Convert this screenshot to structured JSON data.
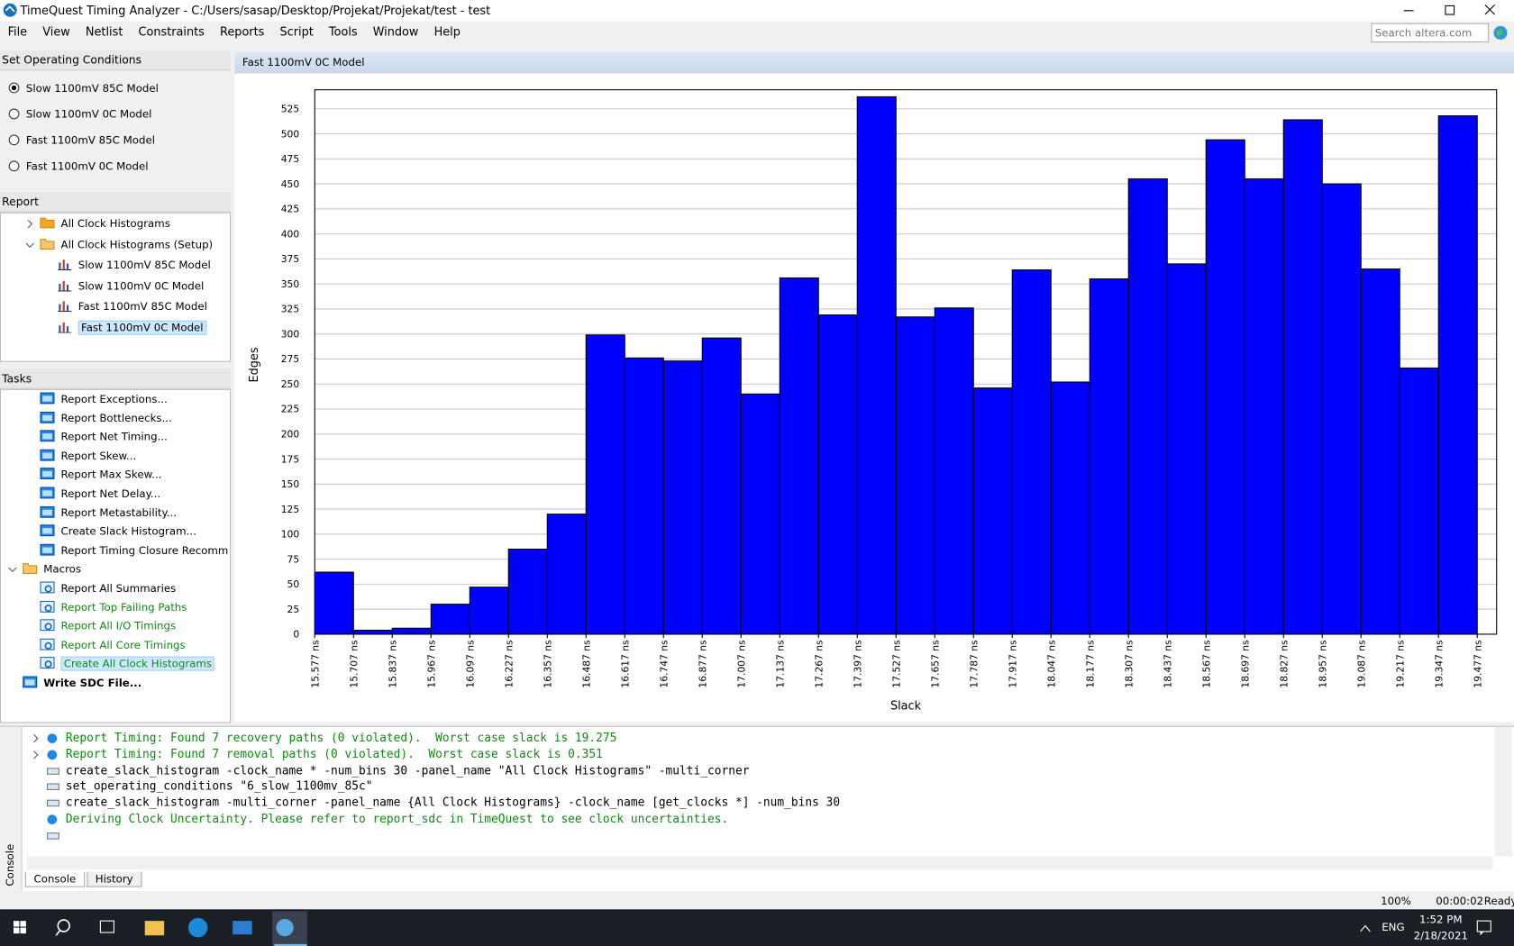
{
  "window": {
    "title": "TimeQuest Timing Analyzer - C:/Users/sasap/Desktop/Projekat/Projekat/test - test"
  },
  "menu": [
    "File",
    "View",
    "Netlist",
    "Constraints",
    "Reports",
    "Script",
    "Tools",
    "Window",
    "Help"
  ],
  "search": {
    "placeholder": "Search altera.com"
  },
  "operating_conditions": {
    "title": "Set Operating Conditions",
    "options": [
      "Slow 1100mV 85C Model",
      "Slow 1100mV 0C Model",
      "Fast 1100mV 85C Model",
      "Fast 1100mV 0C Model"
    ],
    "selected": 0
  },
  "report": {
    "title": "Report",
    "items": [
      {
        "label": "All Clock Histograms",
        "icon": "folder",
        "level": 1,
        "toggle": "collapsed"
      },
      {
        "label": "All Clock Histograms (Setup)",
        "icon": "folder-open",
        "level": 1,
        "toggle": "expanded"
      },
      {
        "label": "Slow 1100mV 85C Model",
        "icon": "chart",
        "level": 2
      },
      {
        "label": "Slow 1100mV 0C Model",
        "icon": "chart",
        "level": 2
      },
      {
        "label": "Fast 1100mV 85C Model",
        "icon": "chart",
        "level": 2
      },
      {
        "label": "Fast 1100mV 0C Model",
        "icon": "chart",
        "level": 2,
        "selected": true
      }
    ]
  },
  "tasks": {
    "title": "Tasks",
    "items": [
      {
        "label": "Report Exceptions...",
        "icon": "task",
        "level": 1
      },
      {
        "label": "Report Bottlenecks...",
        "icon": "task",
        "level": 1
      },
      {
        "label": "Report Net Timing...",
        "icon": "task",
        "level": 1
      },
      {
        "label": "Report Skew...",
        "icon": "task",
        "level": 1
      },
      {
        "label": "Report Max Skew...",
        "icon": "task",
        "level": 1
      },
      {
        "label": "Report Net Delay...",
        "icon": "task",
        "level": 1
      },
      {
        "label": "Report Metastability...",
        "icon": "task",
        "level": 1
      },
      {
        "label": "Create Slack Histogram...",
        "icon": "task",
        "level": 1
      },
      {
        "label": "Report Timing Closure Recomm",
        "icon": "task",
        "level": 1
      },
      {
        "label": "Macros",
        "icon": "folder-open",
        "level": 0,
        "toggle": "expanded"
      },
      {
        "label": "Report All Summaries",
        "icon": "tcl",
        "level": 1
      },
      {
        "label": "Report Top Failing Paths",
        "icon": "tcl",
        "level": 1,
        "green": true
      },
      {
        "label": "Report All I/O Timings",
        "icon": "tcl",
        "level": 1,
        "green": true
      },
      {
        "label": "Report All Core Timings",
        "icon": "tcl",
        "level": 1,
        "green": true
      },
      {
        "label": "Create All Clock Histograms",
        "icon": "tcl",
        "level": 1,
        "green": true,
        "selected": true
      },
      {
        "label": "Write SDC File...",
        "icon": "task",
        "level": 0,
        "bold": true
      }
    ]
  },
  "chart_panel": {
    "title": "Fast 1100mV 0C Model"
  },
  "chart_data": {
    "type": "histogram",
    "xlabel": "Slack",
    "ylabel": "Edges",
    "color": "#0000ff",
    "grid": true,
    "bins": [
      15.577,
      15.707,
      15.837,
      15.967,
      16.097,
      16.227,
      16.357,
      16.487,
      16.617,
      16.747,
      16.877,
      17.007,
      17.137,
      17.267,
      17.397,
      17.527,
      17.657,
      17.787,
      17.917,
      18.047,
      18.177,
      18.307,
      18.437,
      18.567,
      18.697,
      18.827,
      18.957,
      19.087,
      19.217,
      19.347,
      19.477
    ],
    "values": [
      62,
      4,
      6,
      30,
      47,
      85,
      120,
      299,
      276,
      273,
      296,
      240,
      356,
      319,
      537,
      317,
      326,
      246,
      364,
      252,
      355,
      455,
      370,
      494,
      455,
      514,
      450,
      365,
      266,
      518
    ],
    "xlim": [
      15.577,
      19.542
    ],
    "ylim": [
      0,
      544
    ],
    "yticks": [
      0,
      25,
      50,
      75,
      100,
      125,
      150,
      175,
      200,
      225,
      250,
      275,
      300,
      325,
      350,
      375,
      400,
      425,
      450,
      475,
      500,
      525
    ],
    "xticks": [
      {
        "value": 15.577,
        "label": "15.577 ns"
      },
      {
        "value": 15.707,
        "label": "15.707 ns"
      },
      {
        "value": 15.837,
        "label": "15.837 ns"
      },
      {
        "value": 15.967,
        "label": "15.967 ns"
      },
      {
        "value": 16.097,
        "label": "16.097 ns"
      },
      {
        "value": 16.227,
        "label": "16.227 ns"
      },
      {
        "value": 16.357,
        "label": "16.357 ns"
      },
      {
        "value": 16.487,
        "label": "16.487 ns"
      },
      {
        "value": 16.617,
        "label": "16.617 ns"
      },
      {
        "value": 16.747,
        "label": "16.747 ns"
      },
      {
        "value": 16.877,
        "label": "16.877 ns"
      },
      {
        "value": 17.007,
        "label": "17.007 ns"
      },
      {
        "value": 17.137,
        "label": "17.137 ns"
      },
      {
        "value": 17.267,
        "label": "17.267 ns"
      },
      {
        "value": 17.397,
        "label": "17.397 ns"
      },
      {
        "value": 17.527,
        "label": "17.527 ns"
      },
      {
        "value": 17.657,
        "label": "17.657 ns"
      },
      {
        "value": 17.787,
        "label": "17.787 ns"
      },
      {
        "value": 17.917,
        "label": "17.917 ns"
      },
      {
        "value": 18.047,
        "label": "18.047 ns"
      },
      {
        "value": 18.177,
        "label": "18.177 ns"
      },
      {
        "value": 18.307,
        "label": "18.307 ns"
      },
      {
        "value": 18.437,
        "label": "18.437 ns"
      },
      {
        "value": 18.567,
        "label": "18.567 ns"
      },
      {
        "value": 18.697,
        "label": "18.697 ns"
      },
      {
        "value": 18.827,
        "label": "18.827 ns"
      },
      {
        "value": 18.957,
        "label": "18.957 ns"
      },
      {
        "value": 19.087,
        "label": "19.087 ns"
      },
      {
        "value": 19.217,
        "label": "19.217 ns"
      },
      {
        "value": 19.347,
        "label": "19.347 ns"
      },
      {
        "value": 19.477,
        "label": "19.477 ns"
      }
    ]
  },
  "console": {
    "side_label": "Console",
    "lines": [
      {
        "kind": "info",
        "expandable": true,
        "text": "Report Timing: Found 7 recovery paths (0 violated).  Worst case slack is 19.275"
      },
      {
        "kind": "info",
        "expandable": true,
        "text": "Report Timing: Found 7 removal paths (0 violated).  Worst case slack is 0.351"
      },
      {
        "kind": "tcl",
        "text": "create_slack_histogram -clock_name * -num_bins 30 -panel_name \"All Clock Histograms\" -multi_corner"
      },
      {
        "kind": "tcl",
        "text": "set_operating_conditions \"6_slow_1100mv_85c\""
      },
      {
        "kind": "tcl",
        "text": "create_slack_histogram -multi_corner -panel_name {All Clock Histograms} -clock_name [get_clocks *] -num_bins 30"
      },
      {
        "kind": "info",
        "text": "Deriving Clock Uncertainty. Please refer to report_sdc in TimeQuest to see clock uncertainties."
      },
      {
        "kind": "tcl",
        "text": ""
      }
    ],
    "tabs": [
      "Console",
      "History"
    ],
    "active_tab": 0
  },
  "status": {
    "zoom": "100%",
    "elapsed": "00:00:02",
    "state": "Ready"
  },
  "taskbar": {
    "language": "ENG",
    "time": "1:52 PM",
    "date": "2/18/2021"
  }
}
